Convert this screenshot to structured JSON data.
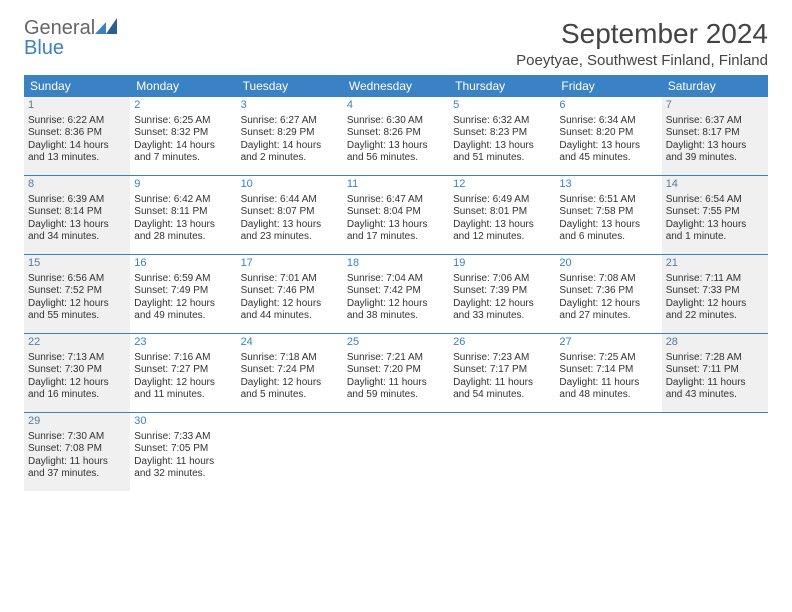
{
  "brand": {
    "name_gray": "General",
    "name_blue": "Blue"
  },
  "title": "September 2024",
  "location": "Poeytyae, Southwest Finland, Finland",
  "colors": {
    "header_bg": "#3b82c4",
    "header_text": "#ffffff",
    "shaded_bg": "#f0f0f0",
    "rule": "#3b82c4",
    "daynum": "#3b82c4",
    "body_text": "#333333"
  },
  "day_headers": [
    "Sunday",
    "Monday",
    "Tuesday",
    "Wednesday",
    "Thursday",
    "Friday",
    "Saturday"
  ],
  "weeks": [
    [
      {
        "n": "1",
        "shaded": true,
        "sunrise": "6:22 AM",
        "sunset": "8:36 PM",
        "daylight": "14 hours and 13 minutes."
      },
      {
        "n": "2",
        "shaded": false,
        "sunrise": "6:25 AM",
        "sunset": "8:32 PM",
        "daylight": "14 hours and 7 minutes."
      },
      {
        "n": "3",
        "shaded": false,
        "sunrise": "6:27 AM",
        "sunset": "8:29 PM",
        "daylight": "14 hours and 2 minutes."
      },
      {
        "n": "4",
        "shaded": false,
        "sunrise": "6:30 AM",
        "sunset": "8:26 PM",
        "daylight": "13 hours and 56 minutes."
      },
      {
        "n": "5",
        "shaded": false,
        "sunrise": "6:32 AM",
        "sunset": "8:23 PM",
        "daylight": "13 hours and 51 minutes."
      },
      {
        "n": "6",
        "shaded": false,
        "sunrise": "6:34 AM",
        "sunset": "8:20 PM",
        "daylight": "13 hours and 45 minutes."
      },
      {
        "n": "7",
        "shaded": true,
        "sunrise": "6:37 AM",
        "sunset": "8:17 PM",
        "daylight": "13 hours and 39 minutes."
      }
    ],
    [
      {
        "n": "8",
        "shaded": true,
        "sunrise": "6:39 AM",
        "sunset": "8:14 PM",
        "daylight": "13 hours and 34 minutes."
      },
      {
        "n": "9",
        "shaded": false,
        "sunrise": "6:42 AM",
        "sunset": "8:11 PM",
        "daylight": "13 hours and 28 minutes."
      },
      {
        "n": "10",
        "shaded": false,
        "sunrise": "6:44 AM",
        "sunset": "8:07 PM",
        "daylight": "13 hours and 23 minutes."
      },
      {
        "n": "11",
        "shaded": false,
        "sunrise": "6:47 AM",
        "sunset": "8:04 PM",
        "daylight": "13 hours and 17 minutes."
      },
      {
        "n": "12",
        "shaded": false,
        "sunrise": "6:49 AM",
        "sunset": "8:01 PM",
        "daylight": "13 hours and 12 minutes."
      },
      {
        "n": "13",
        "shaded": false,
        "sunrise": "6:51 AM",
        "sunset": "7:58 PM",
        "daylight": "13 hours and 6 minutes."
      },
      {
        "n": "14",
        "shaded": true,
        "sunrise": "6:54 AM",
        "sunset": "7:55 PM",
        "daylight": "13 hours and 1 minute."
      }
    ],
    [
      {
        "n": "15",
        "shaded": true,
        "sunrise": "6:56 AM",
        "sunset": "7:52 PM",
        "daylight": "12 hours and 55 minutes."
      },
      {
        "n": "16",
        "shaded": false,
        "sunrise": "6:59 AM",
        "sunset": "7:49 PM",
        "daylight": "12 hours and 49 minutes."
      },
      {
        "n": "17",
        "shaded": false,
        "sunrise": "7:01 AM",
        "sunset": "7:46 PM",
        "daylight": "12 hours and 44 minutes."
      },
      {
        "n": "18",
        "shaded": false,
        "sunrise": "7:04 AM",
        "sunset": "7:42 PM",
        "daylight": "12 hours and 38 minutes."
      },
      {
        "n": "19",
        "shaded": false,
        "sunrise": "7:06 AM",
        "sunset": "7:39 PM",
        "daylight": "12 hours and 33 minutes."
      },
      {
        "n": "20",
        "shaded": false,
        "sunrise": "7:08 AM",
        "sunset": "7:36 PM",
        "daylight": "12 hours and 27 minutes."
      },
      {
        "n": "21",
        "shaded": true,
        "sunrise": "7:11 AM",
        "sunset": "7:33 PM",
        "daylight": "12 hours and 22 minutes."
      }
    ],
    [
      {
        "n": "22",
        "shaded": true,
        "sunrise": "7:13 AM",
        "sunset": "7:30 PM",
        "daylight": "12 hours and 16 minutes."
      },
      {
        "n": "23",
        "shaded": false,
        "sunrise": "7:16 AM",
        "sunset": "7:27 PM",
        "daylight": "12 hours and 11 minutes."
      },
      {
        "n": "24",
        "shaded": false,
        "sunrise": "7:18 AM",
        "sunset": "7:24 PM",
        "daylight": "12 hours and 5 minutes."
      },
      {
        "n": "25",
        "shaded": false,
        "sunrise": "7:21 AM",
        "sunset": "7:20 PM",
        "daylight": "11 hours and 59 minutes."
      },
      {
        "n": "26",
        "shaded": false,
        "sunrise": "7:23 AM",
        "sunset": "7:17 PM",
        "daylight": "11 hours and 54 minutes."
      },
      {
        "n": "27",
        "shaded": false,
        "sunrise": "7:25 AM",
        "sunset": "7:14 PM",
        "daylight": "11 hours and 48 minutes."
      },
      {
        "n": "28",
        "shaded": true,
        "sunrise": "7:28 AM",
        "sunset": "7:11 PM",
        "daylight": "11 hours and 43 minutes."
      }
    ],
    [
      {
        "n": "29",
        "shaded": true,
        "sunrise": "7:30 AM",
        "sunset": "7:08 PM",
        "daylight": "11 hours and 37 minutes."
      },
      {
        "n": "30",
        "shaded": false,
        "sunrise": "7:33 AM",
        "sunset": "7:05 PM",
        "daylight": "11 hours and 32 minutes."
      },
      {
        "empty": true
      },
      {
        "empty": true
      },
      {
        "empty": true
      },
      {
        "empty": true
      },
      {
        "empty": true
      }
    ]
  ],
  "labels": {
    "sunrise": "Sunrise:",
    "sunset": "Sunset:",
    "daylight": "Daylight:"
  }
}
